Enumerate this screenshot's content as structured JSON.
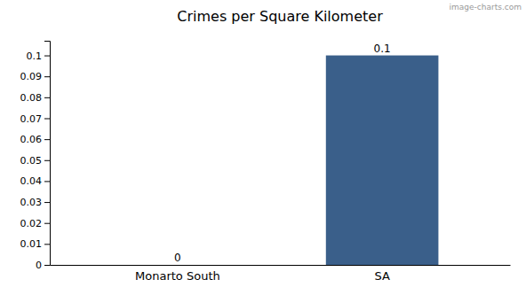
{
  "chart_data": {
    "type": "bar",
    "title": "Crimes per Square Kilometer",
    "categories": [
      "Monarto South",
      "SA"
    ],
    "values": [
      0,
      0.1
    ],
    "colors": [
      "#3a5f8a",
      "#3a5f8a"
    ],
    "ylim": [
      0,
      0.107
    ],
    "yticks": [
      0,
      0.01,
      0.02,
      0.03,
      0.04,
      0.05,
      0.06,
      0.07,
      0.08,
      0.09,
      0.1
    ],
    "data_labels": true,
    "grid": false,
    "annotations": [
      "image-charts.com"
    ]
  }
}
